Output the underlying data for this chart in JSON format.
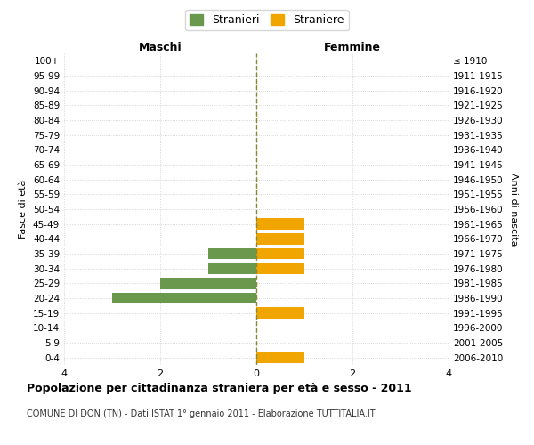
{
  "age_groups": [
    "100+",
    "95-99",
    "90-94",
    "85-89",
    "80-84",
    "75-79",
    "70-74",
    "65-69",
    "60-64",
    "55-59",
    "50-54",
    "45-49",
    "40-44",
    "35-39",
    "30-34",
    "25-29",
    "20-24",
    "15-19",
    "10-14",
    "5-9",
    "0-4"
  ],
  "birth_years": [
    "≤ 1910",
    "1911-1915",
    "1916-1920",
    "1921-1925",
    "1926-1930",
    "1931-1935",
    "1936-1940",
    "1941-1945",
    "1946-1950",
    "1951-1955",
    "1956-1960",
    "1961-1965",
    "1966-1970",
    "1971-1975",
    "1976-1980",
    "1981-1985",
    "1986-1990",
    "1991-1995",
    "1996-2000",
    "2001-2005",
    "2006-2010"
  ],
  "males": [
    0,
    0,
    0,
    0,
    0,
    0,
    0,
    0,
    0,
    0,
    0,
    0,
    0,
    1,
    1,
    2,
    3,
    0,
    0,
    0,
    0
  ],
  "females": [
    0,
    0,
    0,
    0,
    0,
    0,
    0,
    0,
    0,
    0,
    0,
    1,
    1,
    1,
    1,
    0,
    0,
    1,
    0,
    0,
    1
  ],
  "male_color": "#6a994e",
  "female_color": "#f0a500",
  "title": "Popolazione per cittadinanza straniera per età e sesso - 2011",
  "subtitle": "COMUNE DI DON (TN) - Dati ISTAT 1° gennaio 2011 - Elaborazione TUTTITALIA.IT",
  "xlabel_left": "Maschi",
  "xlabel_right": "Femmine",
  "ylabel_left": "Fasce di età",
  "ylabel_right": "Anni di nascita",
  "legend_male": "Stranieri",
  "legend_female": "Straniere",
  "xlim": 4,
  "background_color": "#ffffff",
  "grid_color": "#cccccc",
  "bar_height": 0.75
}
